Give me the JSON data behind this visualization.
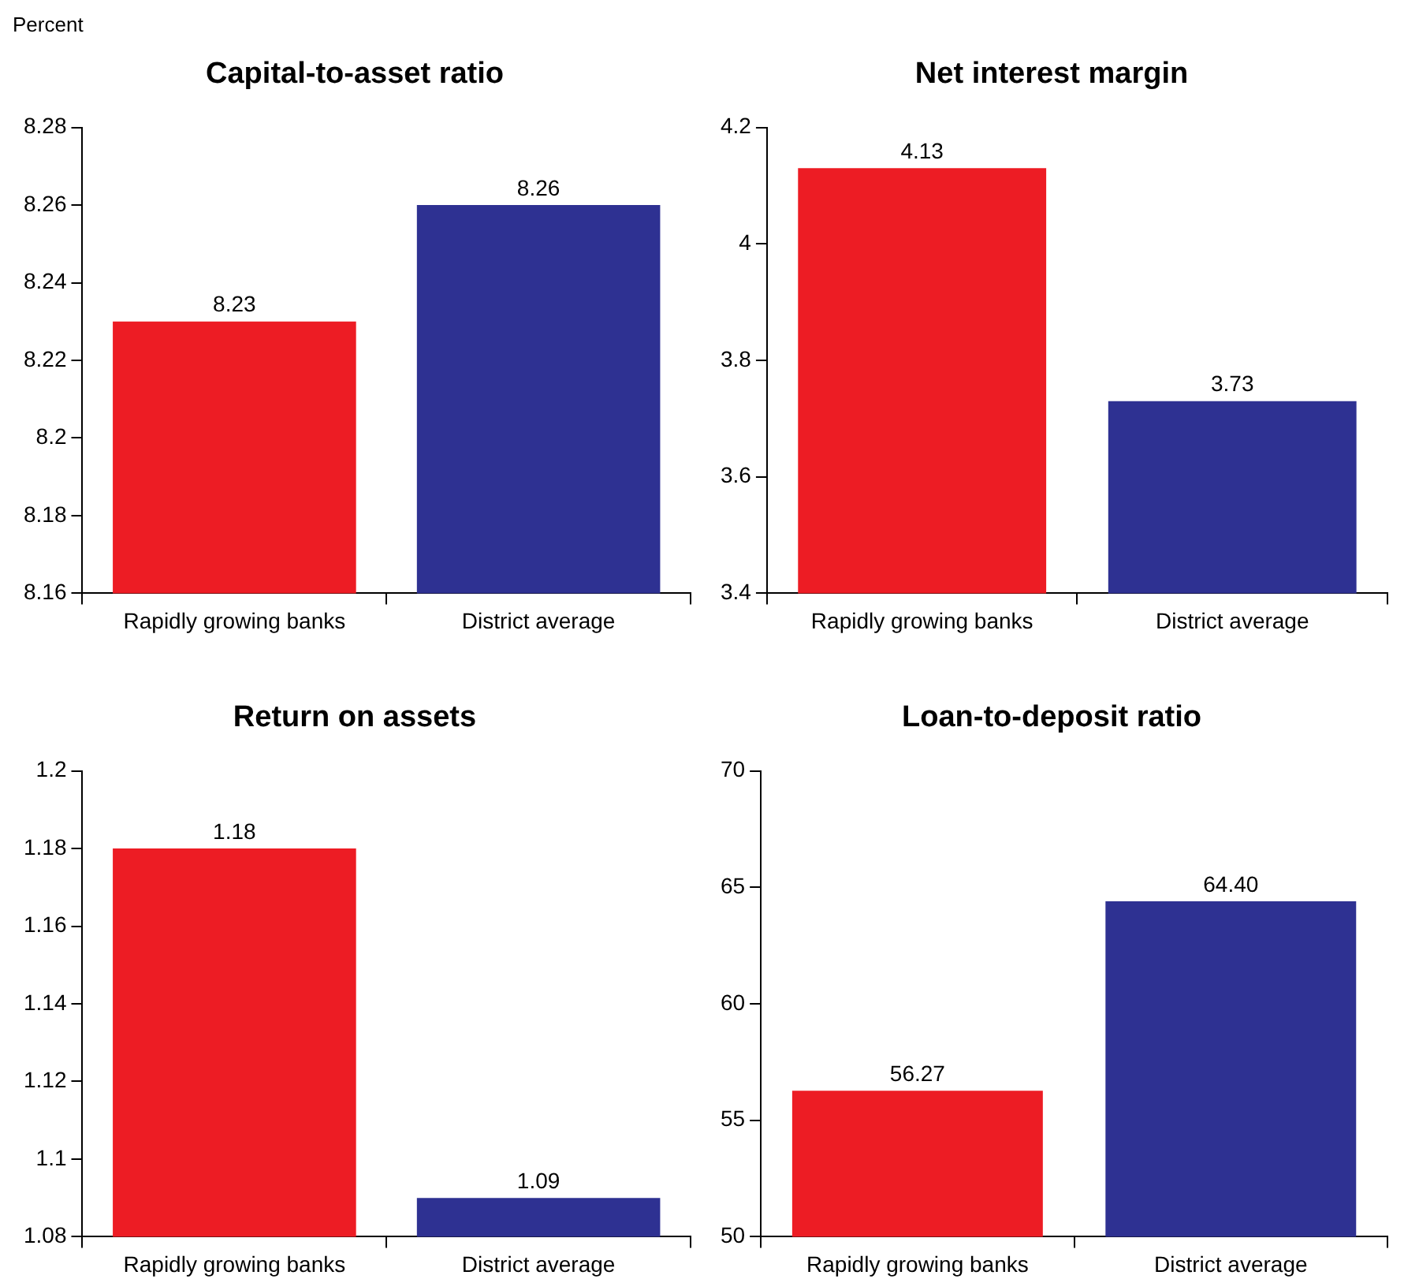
{
  "chart_data": [
    {
      "type": "bar",
      "title": "Capital-to-asset ratio",
      "annotations": [
        "Percent"
      ],
      "categories": [
        "Rapidly growing banks",
        "District average"
      ],
      "values": [
        8.23,
        8.26
      ],
      "colors": [
        "#ed1c24",
        "#2e3192"
      ],
      "ylim": [
        8.16,
        8.28
      ],
      "yticks": [
        8.16,
        8.18,
        8.2,
        8.22,
        8.24,
        8.26,
        8.28
      ],
      "data_labels": true,
      "grid": false,
      "legend": false
    },
    {
      "type": "bar",
      "title": "Net interest margin",
      "categories": [
        "Rapidly growing banks",
        "District average"
      ],
      "values": [
        4.13,
        3.73
      ],
      "colors": [
        "#ed1c24",
        "#2e3192"
      ],
      "ylim": [
        3.4,
        4.2
      ],
      "yticks": [
        3.4,
        3.6,
        3.8,
        4,
        4.2
      ],
      "data_labels": true,
      "grid": false,
      "legend": false
    },
    {
      "type": "bar",
      "title": "Return on assets",
      "categories": [
        "Rapidly growing banks",
        "District average"
      ],
      "values": [
        1.18,
        1.09
      ],
      "colors": [
        "#ed1c24",
        "#2e3192"
      ],
      "ylim": [
        1.08,
        1.2
      ],
      "yticks": [
        1.08,
        1.1,
        1.12,
        1.14,
        1.16,
        1.18,
        1.2
      ],
      "data_labels": true,
      "grid": false,
      "legend": false
    },
    {
      "type": "bar",
      "title": "Loan-to-deposit ratio",
      "categories": [
        "Rapidly growing banks",
        "District average"
      ],
      "values": [
        56.27,
        64.4
      ],
      "value_labels": [
        "56.27",
        "64.40"
      ],
      "colors": [
        "#ed1c24",
        "#2e3192"
      ],
      "ylim": [
        50,
        70
      ],
      "yticks": [
        50,
        55,
        60,
        65,
        70
      ],
      "grid": false,
      "legend": false
    }
  ]
}
